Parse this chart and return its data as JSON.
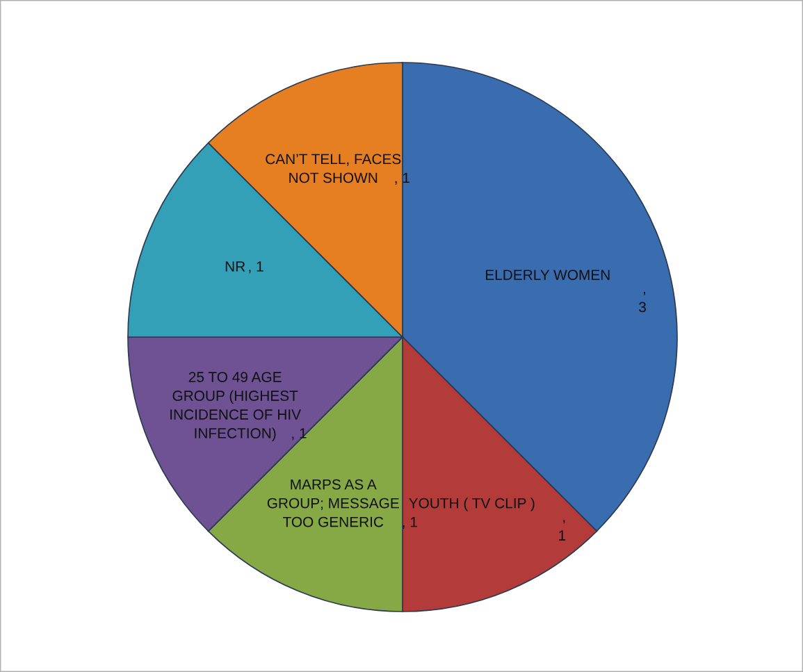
{
  "chart_data": {
    "type": "pie",
    "categories": [
      "ELDERLY WOMEN ",
      "YOUTH ( TV CLIP )",
      "MARPS AS A\nGROUP; MESSAGE\nTOO GENERIC",
      "25 TO 49 AGE\nGROUP (HIGHEST\nINCIDENCE OF HIV\nINFECTION)",
      "NR",
      "CAN’T TELL, FACES\nNOT SHOWN"
    ],
    "values": [
      3,
      1,
      1,
      1,
      1,
      1
    ],
    "colors": [
      "#3a6cb0",
      "#b33c3a",
      "#86a945",
      "#6e5294",
      "#34a0b8",
      "#e67e22"
    ],
    "value_labels": [
      ",\n3",
      ",\n1",
      ", 1",
      ", 1",
      ", 1",
      ", 1"
    ]
  }
}
